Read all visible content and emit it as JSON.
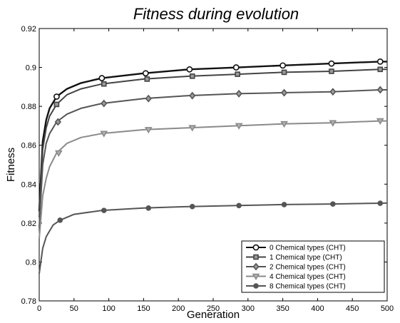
{
  "chart_data": {
    "type": "line",
    "title": "Fitness during evolution",
    "xlabel": "Generation",
    "ylabel": "Fitness",
    "xlim": [
      0,
      500
    ],
    "ylim": [
      0.78,
      0.92
    ],
    "xticks": [
      0,
      50,
      100,
      150,
      200,
      250,
      300,
      350,
      400,
      450,
      500
    ],
    "xtick_labels": [
      "0",
      "50",
      "100",
      "150",
      "200",
      "250",
      "300",
      "350",
      "400",
      "450",
      "500"
    ],
    "yticks": [
      0.78,
      0.8,
      0.82,
      0.84,
      0.86,
      0.88,
      0.9,
      0.92
    ],
    "ytick_labels": [
      "0.78",
      "0.8",
      "0.82",
      "0.84",
      "0.86",
      "0.88",
      "0.9",
      "0.92"
    ],
    "grid": false,
    "legend_position": "bottom-right",
    "series": [
      {
        "name": "0 Chemical types (CHT)",
        "color": "#111111",
        "marker": "circle",
        "x": [
          0,
          5,
          10,
          15,
          25,
          40,
          60,
          90,
          150,
          215,
          285,
          350,
          420,
          490,
          500
        ],
        "y": [
          0.826,
          0.862,
          0.873,
          0.879,
          0.885,
          0.889,
          0.892,
          0.8945,
          0.897,
          0.899,
          0.9,
          0.901,
          0.902,
          0.903,
          0.903
        ],
        "marker_x": [
          25,
          90,
          153,
          216,
          283,
          350,
          420,
          490
        ],
        "marker_y": [
          0.885,
          0.8945,
          0.897,
          0.899,
          0.9,
          0.901,
          0.902,
          0.903
        ]
      },
      {
        "name": "1 Chemical type (CHT)",
        "color": "#444444",
        "marker": "square",
        "x": [
          0,
          5,
          10,
          15,
          25,
          40,
          60,
          90,
          150,
          215,
          285,
          350,
          420,
          490,
          500
        ],
        "y": [
          0.823,
          0.858,
          0.869,
          0.875,
          0.881,
          0.886,
          0.889,
          0.8915,
          0.894,
          0.8955,
          0.8965,
          0.8975,
          0.898,
          0.899,
          0.899
        ],
        "marker_x": [
          25,
          93,
          155,
          220,
          285,
          352,
          420,
          490
        ],
        "marker_y": [
          0.881,
          0.8915,
          0.894,
          0.8955,
          0.8965,
          0.8975,
          0.898,
          0.899
        ]
      },
      {
        "name": "2 Chemical types (CHT)",
        "color": "#555555",
        "marker": "diamond",
        "x": [
          0,
          5,
          10,
          15,
          25,
          40,
          60,
          90,
          150,
          215,
          285,
          350,
          420,
          490,
          500
        ],
        "y": [
          0.818,
          0.85,
          0.861,
          0.866,
          0.872,
          0.876,
          0.879,
          0.8815,
          0.884,
          0.8855,
          0.8865,
          0.887,
          0.8875,
          0.8885,
          0.8885
        ],
        "marker_x": [
          27,
          93,
          157,
          220,
          287,
          352,
          422,
          490
        ],
        "marker_y": [
          0.872,
          0.8815,
          0.884,
          0.8855,
          0.8865,
          0.887,
          0.8875,
          0.8885
        ]
      },
      {
        "name": "4 Chemical types (CHT)",
        "color": "#8a8a8a",
        "marker": "triangle-down",
        "x": [
          0,
          5,
          10,
          15,
          25,
          40,
          60,
          90,
          150,
          215,
          285,
          350,
          420,
          490,
          500
        ],
        "y": [
          0.812,
          0.834,
          0.843,
          0.849,
          0.856,
          0.861,
          0.864,
          0.866,
          0.868,
          0.869,
          0.87,
          0.871,
          0.8715,
          0.8725,
          0.8725
        ],
        "marker_x": [
          28,
          93,
          157,
          220,
          287,
          352,
          422,
          490
        ],
        "marker_y": [
          0.856,
          0.866,
          0.868,
          0.869,
          0.87,
          0.871,
          0.8715,
          0.8725
        ]
      },
      {
        "name": "8 Chemical types (CHT)",
        "color": "#555555",
        "marker": "dot",
        "x": [
          0,
          5,
          10,
          15,
          20,
          30,
          50,
          90,
          150,
          215,
          285,
          350,
          420,
          490,
          500
        ],
        "y": [
          0.794,
          0.807,
          0.813,
          0.816,
          0.819,
          0.8215,
          0.8245,
          0.8265,
          0.8277,
          0.8285,
          0.829,
          0.8295,
          0.8298,
          0.8302,
          0.8303
        ],
        "marker_x": [
          30,
          93,
          157,
          220,
          287,
          352,
          422,
          490
        ],
        "marker_y": [
          0.8215,
          0.8265,
          0.8277,
          0.8285,
          0.829,
          0.8295,
          0.8298,
          0.8302
        ]
      }
    ]
  }
}
